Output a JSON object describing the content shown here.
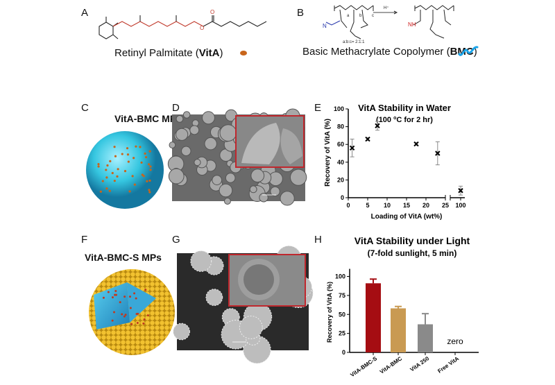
{
  "panels": {
    "A": {
      "label": "A",
      "caption_pre": "Retinyl Palmitate (",
      "caption_bold": "VitA",
      "caption_post": ")",
      "dot_color": "#c8651b"
    },
    "B": {
      "label": "B",
      "caption_pre": "Basic Methacrylate Copolymer (",
      "caption_bold": "BMC",
      "caption_post": ")",
      "reagent": "H⁺",
      "ratio": "a:b:c= 2:1:1",
      "nh": "NH",
      "sub_a": "a",
      "sub_b": "b",
      "sub_c": "c",
      "n_atom": "N",
      "squiggle_color": "#1aa3e8"
    },
    "C": {
      "label": "C",
      "title": "VitA-BMC MPs",
      "sphere_color": "#35c6e0"
    },
    "D": {
      "label": "D"
    },
    "E": {
      "label": "E"
    },
    "F": {
      "label": "F",
      "title": "VitA-BMC-S MPs",
      "shell_color": "#e8b020"
    },
    "G": {
      "label": "G"
    },
    "H": {
      "label": "H"
    }
  },
  "chart_data": [
    {
      "type": "scatter",
      "title": "VitA Stability in Water",
      "subtitle_pre": "(100 ",
      "subtitle_sup": "o",
      "subtitle_post": "C for 2 hr)",
      "xlabel": "Loading of VitA (wt%)",
      "ylabel": "Recovery of VitA (%)",
      "ylim": [
        0,
        100
      ],
      "yticks": [
        "0",
        "20",
        "40",
        "60",
        "80",
        "100"
      ],
      "xticks": [
        "0",
        "5",
        "10",
        "15",
        "20",
        "25",
        "100"
      ],
      "x_axis_break": [
        25,
        100
      ],
      "points": [
        {
          "x": 1,
          "y": 56,
          "err": 10
        },
        {
          "x": 5,
          "y": 66,
          "err": 1.5
        },
        {
          "x": 7.5,
          "y": 81,
          "err": 5
        },
        {
          "x": 17.5,
          "y": 60.5,
          "err": 1.5
        },
        {
          "x": 23,
          "y": 50,
          "err": 13
        },
        {
          "x": 100,
          "y": 8,
          "err": 5
        }
      ],
      "marker": "x"
    },
    {
      "type": "bar",
      "title": "VitA Stability under Light",
      "subtitle": "(7-fold sunlight, 5 min)",
      "ylabel": "Recovery of VitA (%)",
      "ylim": [
        0,
        110
      ],
      "yticks": [
        "0",
        "25",
        "50",
        "75",
        "100"
      ],
      "categories": [
        "VitA-BMC-S",
        "VitA-BMC",
        "VitA 250",
        "Free VitA"
      ],
      "values": [
        91,
        58,
        37,
        0
      ],
      "errors": [
        5.5,
        2.5,
        14,
        0
      ],
      "colors": [
        "#a50d12",
        "#c99a52",
        "#8a8a8a",
        "#000000"
      ],
      "annotation": "zero"
    }
  ]
}
